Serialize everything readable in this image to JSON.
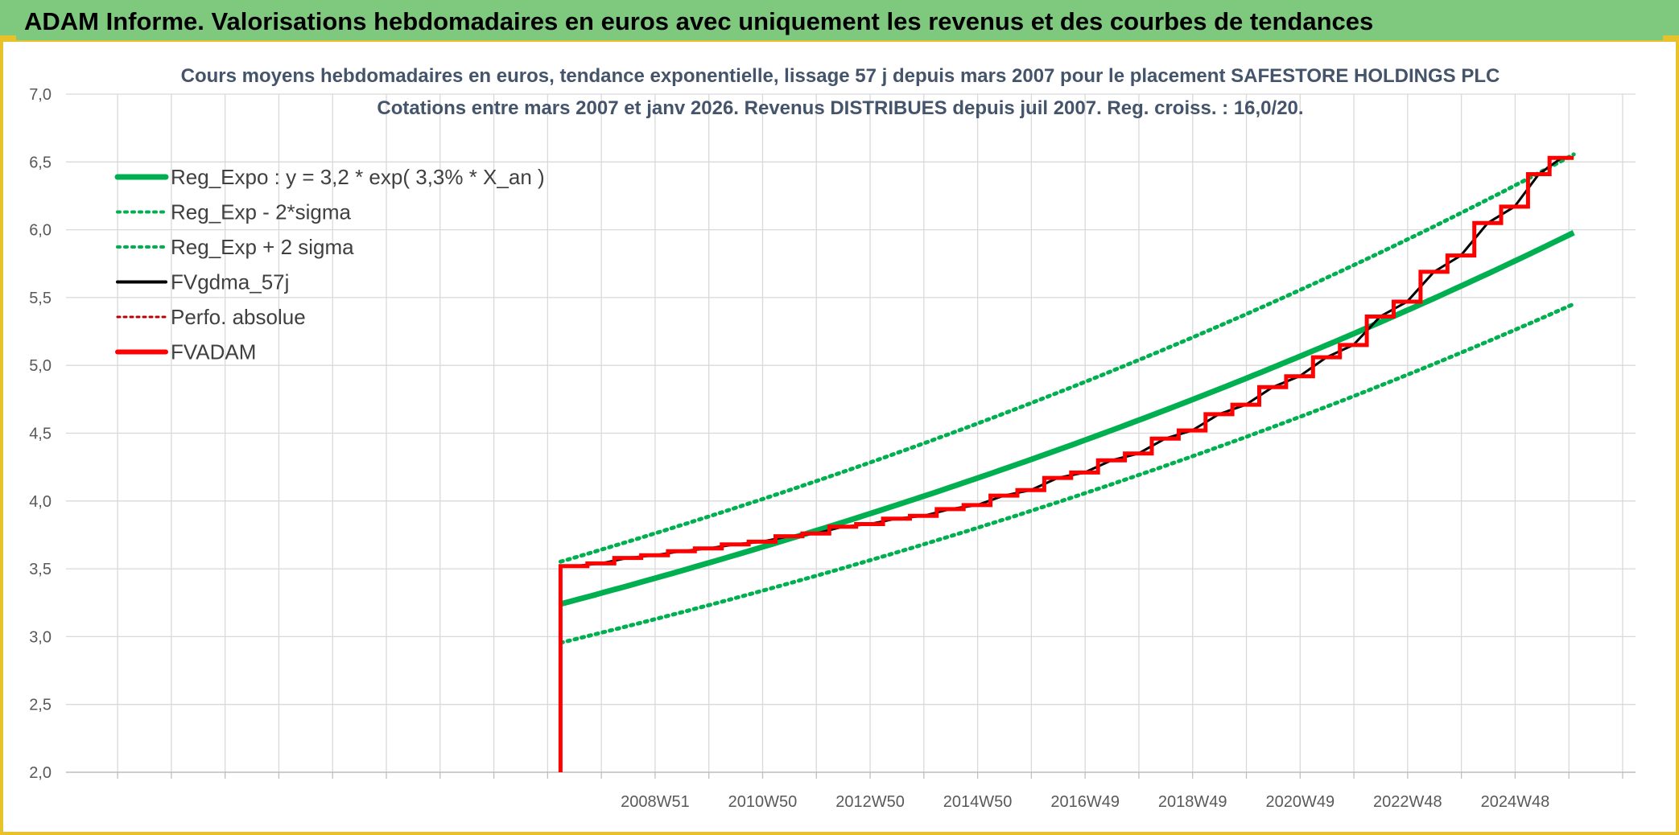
{
  "header": {
    "title": "ADAM Informe. Valorisations hebdomadaires en euros avec uniquement les revenus et des courbes de tendances"
  },
  "colors": {
    "header_bg": "#7fc97f",
    "accent": "#e8c22a",
    "trend": "#00b050",
    "smoothed": "#000000",
    "adam": "#ff0000",
    "perfo": "#c00000",
    "grid": "#d9d9d9"
  },
  "chart_data": {
    "type": "line",
    "title": "Cours moyens hebdomadaires en euros, tendance exponentielle, lissage 57 j depuis mars 2007 pour le placement SAFESTORE HOLDINGS PLC",
    "subtitle": "Cotations entre mars 2007 et janv 2026. Revenus DISTRIBUES depuis juil 2007. Reg. croiss. : 16,0/20.",
    "xlim": [
      1998.0,
      2027.2
    ],
    "ylim": [
      2.0,
      7.0
    ],
    "y_ticks": [
      "2,0",
      "2,5",
      "3,0",
      "3,5",
      "4,0",
      "4,5",
      "5,0",
      "5,5",
      "6,0",
      "6,5",
      "7,0"
    ],
    "x_ticks": [
      {
        "label": "2008W51",
        "x": 2008.96
      },
      {
        "label": "2010W50",
        "x": 2010.96
      },
      {
        "label": "2012W50",
        "x": 2012.96
      },
      {
        "label": "2014W50",
        "x": 2014.96
      },
      {
        "label": "2016W49",
        "x": 2016.96
      },
      {
        "label": "2018W49",
        "x": 2018.96
      },
      {
        "label": "2020W49",
        "x": 2020.96
      },
      {
        "label": "2022W48",
        "x": 2022.96
      },
      {
        "label": "2024W48",
        "x": 2024.96
      }
    ],
    "grid": true,
    "legend_position": "top-left",
    "trend": {
      "a": 3.24,
      "rate": 0.0325,
      "x0": 2007.2,
      "x1": 2026.05
    },
    "band_factor": 0.912,
    "series": [
      {
        "name": "Reg_Expo : y = 3,2 * exp( 3,3% *  X_an )",
        "style": "trend"
      },
      {
        "name": "Reg_Exp - 2*sigma",
        "style": "lower"
      },
      {
        "name": "Reg_Exp + 2 sigma",
        "style": "upper"
      },
      {
        "name": "FVgdma_57j",
        "style": "smoothed"
      },
      {
        "name": "Perfo. absolue",
        "style": "perfo"
      },
      {
        "name": "FVADAM",
        "style": "adam",
        "start": {
          "x": 2007.2,
          "y": 2.0
        },
        "x_end": 2026.05,
        "steps": [
          {
            "x": 2007.2,
            "y": 3.52
          },
          {
            "x": 2007.7,
            "y": 3.54
          },
          {
            "x": 2008.2,
            "y": 3.58
          },
          {
            "x": 2008.7,
            "y": 3.6
          },
          {
            "x": 2009.2,
            "y": 3.63
          },
          {
            "x": 2009.7,
            "y": 3.65
          },
          {
            "x": 2010.2,
            "y": 3.68
          },
          {
            "x": 2010.7,
            "y": 3.7
          },
          {
            "x": 2011.2,
            "y": 3.74
          },
          {
            "x": 2011.7,
            "y": 3.76
          },
          {
            "x": 2012.2,
            "y": 3.81
          },
          {
            "x": 2012.7,
            "y": 3.83
          },
          {
            "x": 2013.2,
            "y": 3.87
          },
          {
            "x": 2013.7,
            "y": 3.89
          },
          {
            "x": 2014.2,
            "y": 3.94
          },
          {
            "x": 2014.7,
            "y": 3.97
          },
          {
            "x": 2015.2,
            "y": 4.04
          },
          {
            "x": 2015.7,
            "y": 4.08
          },
          {
            "x": 2016.2,
            "y": 4.17
          },
          {
            "x": 2016.7,
            "y": 4.21
          },
          {
            "x": 2017.2,
            "y": 4.3
          },
          {
            "x": 2017.7,
            "y": 4.35
          },
          {
            "x": 2018.2,
            "y": 4.46
          },
          {
            "x": 2018.7,
            "y": 4.52
          },
          {
            "x": 2019.2,
            "y": 4.64
          },
          {
            "x": 2019.7,
            "y": 4.71
          },
          {
            "x": 2020.2,
            "y": 4.84
          },
          {
            "x": 2020.7,
            "y": 4.92
          },
          {
            "x": 2021.2,
            "y": 5.06
          },
          {
            "x": 2021.7,
            "y": 5.15
          },
          {
            "x": 2022.2,
            "y": 5.36
          },
          {
            "x": 2022.7,
            "y": 5.47
          },
          {
            "x": 2023.2,
            "y": 5.69
          },
          {
            "x": 2023.7,
            "y": 5.81
          },
          {
            "x": 2024.2,
            "y": 6.05
          },
          {
            "x": 2024.7,
            "y": 6.17
          },
          {
            "x": 2025.2,
            "y": 6.41
          },
          {
            "x": 2025.6,
            "y": 6.53
          }
        ]
      }
    ]
  }
}
